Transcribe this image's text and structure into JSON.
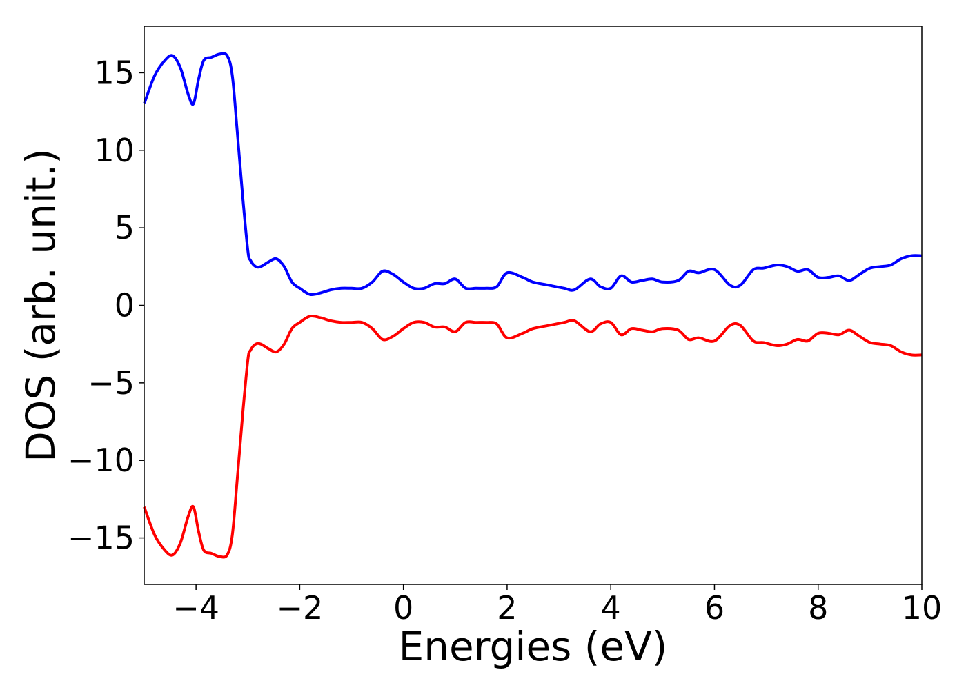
{
  "chart_data": {
    "type": "line",
    "title": "",
    "xlabel": "Energies (eV)",
    "ylabel": "DOS (arb. unit.)",
    "xlim": [
      -5,
      10
    ],
    "ylim": [
      -18,
      18
    ],
    "xticks": [
      -4,
      -2,
      0,
      2,
      4,
      6,
      8,
      10
    ],
    "yticks": [
      -15,
      -10,
      -5,
      0,
      5,
      10,
      15
    ],
    "xtick_labels": [
      "−4",
      "−2",
      "0",
      "2",
      "4",
      "6",
      "8",
      "10"
    ],
    "ytick_labels": [
      "−15",
      "−10",
      "−5",
      "0",
      "5",
      "10",
      "15"
    ],
    "grid": false,
    "legend": "none",
    "series": [
      {
        "color": "#0000ff",
        "x": [
          -5.0,
          -4.8,
          -4.6,
          -4.45,
          -4.3,
          -4.15,
          -4.05,
          -3.95,
          -3.85,
          -3.7,
          -3.55,
          -3.4,
          -3.3,
          -3.2,
          -3.1,
          -3.0,
          -2.95,
          -2.85,
          -2.75,
          -2.6,
          -2.45,
          -2.3,
          -2.15,
          -2.0,
          -1.8,
          -1.6,
          -1.4,
          -1.2,
          -1.0,
          -0.8,
          -0.6,
          -0.4,
          -0.2,
          0.0,
          0.2,
          0.4,
          0.6,
          0.8,
          1.0,
          1.2,
          1.4,
          1.6,
          1.8,
          2.0,
          2.3,
          2.5,
          2.8,
          3.1,
          3.3,
          3.6,
          3.8,
          4.0,
          4.2,
          4.4,
          4.6,
          4.8,
          5.0,
          5.3,
          5.5,
          5.7,
          6.0,
          6.3,
          6.5,
          6.75,
          6.95,
          7.2,
          7.4,
          7.6,
          7.8,
          8.0,
          8.2,
          8.4,
          8.6,
          8.8,
          9.0,
          9.2,
          9.4,
          9.6,
          9.8,
          10.0
        ],
        "values": [
          13.0,
          14.8,
          15.8,
          16.1,
          15.3,
          13.6,
          13.0,
          14.6,
          15.8,
          16.0,
          16.2,
          16.1,
          14.8,
          11.0,
          7.0,
          3.5,
          2.9,
          2.5,
          2.5,
          2.8,
          3.0,
          2.5,
          1.5,
          1.1,
          0.7,
          0.8,
          1.0,
          1.1,
          1.1,
          1.1,
          1.5,
          2.2,
          2.0,
          1.5,
          1.1,
          1.1,
          1.4,
          1.4,
          1.7,
          1.1,
          1.1,
          1.1,
          1.2,
          2.1,
          1.8,
          1.5,
          1.3,
          1.1,
          1.0,
          1.7,
          1.2,
          1.1,
          1.9,
          1.5,
          1.6,
          1.7,
          1.5,
          1.6,
          2.2,
          2.1,
          2.3,
          1.3,
          1.3,
          2.3,
          2.4,
          2.6,
          2.5,
          2.2,
          2.3,
          1.8,
          1.8,
          1.9,
          1.6,
          2.0,
          2.4,
          2.5,
          2.6,
          3.0,
          3.2,
          3.2
        ]
      },
      {
        "color": "#ff0000",
        "x": [
          -5.0,
          -4.8,
          -4.6,
          -4.45,
          -4.3,
          -4.15,
          -4.05,
          -3.95,
          -3.85,
          -3.7,
          -3.55,
          -3.4,
          -3.3,
          -3.2,
          -3.1,
          -3.0,
          -2.95,
          -2.85,
          -2.75,
          -2.6,
          -2.45,
          -2.3,
          -2.15,
          -2.0,
          -1.8,
          -1.6,
          -1.4,
          -1.2,
          -1.0,
          -0.8,
          -0.6,
          -0.4,
          -0.2,
          0.0,
          0.2,
          0.4,
          0.6,
          0.8,
          1.0,
          1.2,
          1.4,
          1.6,
          1.8,
          2.0,
          2.3,
          2.5,
          2.8,
          3.1,
          3.3,
          3.6,
          3.8,
          4.0,
          4.2,
          4.4,
          4.6,
          4.8,
          5.0,
          5.3,
          5.5,
          5.7,
          6.0,
          6.3,
          6.5,
          6.75,
          6.95,
          7.2,
          7.4,
          7.6,
          7.8,
          8.0,
          8.2,
          8.4,
          8.6,
          8.8,
          9.0,
          9.2,
          9.4,
          9.6,
          9.8,
          10.0
        ],
        "values": [
          -13.0,
          -14.8,
          -15.8,
          -16.1,
          -15.3,
          -13.6,
          -13.0,
          -14.6,
          -15.8,
          -16.0,
          -16.2,
          -16.1,
          -14.8,
          -11.0,
          -7.0,
          -3.5,
          -2.9,
          -2.5,
          -2.5,
          -2.8,
          -3.0,
          -2.5,
          -1.5,
          -1.1,
          -0.7,
          -0.8,
          -1.0,
          -1.1,
          -1.1,
          -1.1,
          -1.5,
          -2.2,
          -2.0,
          -1.5,
          -1.1,
          -1.1,
          -1.4,
          -1.4,
          -1.7,
          -1.1,
          -1.1,
          -1.1,
          -1.2,
          -2.1,
          -1.8,
          -1.5,
          -1.3,
          -1.1,
          -1.0,
          -1.7,
          -1.2,
          -1.1,
          -1.9,
          -1.5,
          -1.6,
          -1.7,
          -1.5,
          -1.6,
          -2.2,
          -2.1,
          -2.3,
          -1.3,
          -1.3,
          -2.3,
          -2.4,
          -2.6,
          -2.5,
          -2.2,
          -2.3,
          -1.8,
          -1.8,
          -1.9,
          -1.6,
          -2.0,
          -2.4,
          -2.5,
          -2.6,
          -3.0,
          -3.2,
          -3.2
        ]
      }
    ]
  }
}
